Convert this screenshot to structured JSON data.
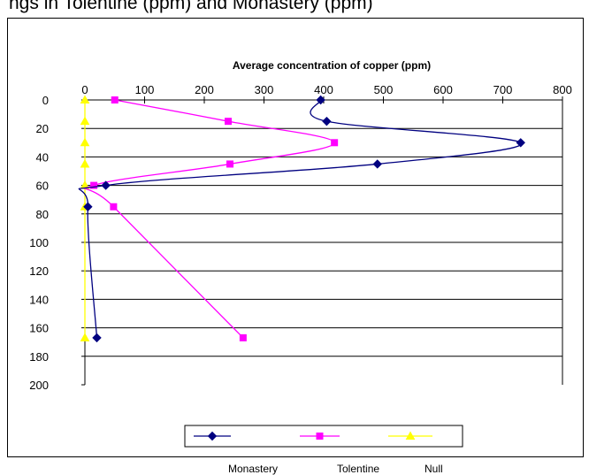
{
  "caption": "ngs in Tolentine (ppm) and Monastery (ppm)",
  "chart_data": {
    "type": "line",
    "title": "Average concentration of copper (ppm)",
    "xlabel": "",
    "ylabel": "",
    "x_axis_position": "top",
    "y_axis_inverted": true,
    "xlim": [
      0,
      800
    ],
    "ylim": [
      200,
      0
    ],
    "x_ticks": [
      "0",
      "100",
      "200",
      "300",
      "400",
      "500",
      "600",
      "700",
      "800"
    ],
    "y_ticks": [
      "0",
      "20",
      "40",
      "60",
      "80",
      "100",
      "120",
      "140",
      "160",
      "180",
      "200"
    ],
    "grid": "horizontal",
    "legend_position": "bottom",
    "series": [
      {
        "name": "Monastery",
        "color": "#000080",
        "marker": "diamond",
        "points": [
          [
            395,
            0
          ],
          [
            405,
            15
          ],
          [
            730,
            30
          ],
          [
            490,
            45
          ],
          [
            35,
            60
          ],
          [
            5,
            75
          ],
          [
            20,
            167
          ]
        ]
      },
      {
        "name": "Tolentine",
        "color": "#ff00ff",
        "marker": "square",
        "points": [
          [
            50,
            0
          ],
          [
            240,
            15
          ],
          [
            418,
            30
          ],
          [
            243,
            45
          ],
          [
            15,
            60
          ],
          [
            48,
            75
          ],
          [
            265,
            167
          ]
        ]
      },
      {
        "name": "Null",
        "color": "#ffff00",
        "marker": "triangle",
        "points": [
          [
            0,
            0
          ],
          [
            0,
            15
          ],
          [
            0,
            30
          ],
          [
            0,
            45
          ],
          [
            0,
            60
          ],
          [
            0,
            75
          ],
          [
            0,
            167
          ]
        ]
      }
    ]
  }
}
